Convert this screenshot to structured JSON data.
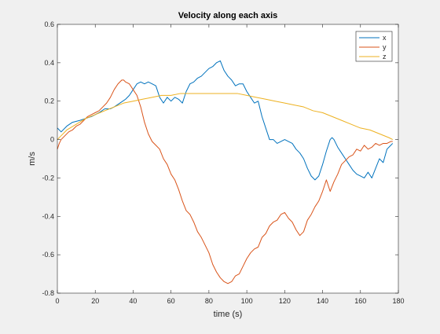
{
  "chart_data": {
    "type": "line",
    "title": "Velocity along each axis",
    "xlabel": "time (s)",
    "ylabel": "m/s",
    "xlim": [
      0,
      180
    ],
    "ylim": [
      -0.8,
      0.6
    ],
    "xticks": [
      0,
      20,
      40,
      60,
      80,
      100,
      120,
      140,
      160,
      180
    ],
    "yticks": [
      -0.8,
      -0.6,
      -0.4,
      -0.2,
      0,
      0.2,
      0.4,
      0.6
    ],
    "xtick_labels": [
      "0",
      "20",
      "40",
      "60",
      "80",
      "100",
      "120",
      "140",
      "160",
      "180"
    ],
    "ytick_labels": [
      "-0.8",
      "-0.6",
      "-0.4",
      "-0.2",
      "0",
      "0.2",
      "0.4",
      "0.6"
    ],
    "grid": false,
    "legend_position": "top-right",
    "series": [
      {
        "name": "x",
        "color": "#0072BD",
        "x": [
          0,
          2,
          5,
          8,
          12,
          15,
          18,
          22,
          25,
          28,
          30,
          33,
          36,
          38,
          40,
          42,
          44,
          46,
          48,
          50,
          52,
          54,
          56,
          58,
          60,
          62,
          64,
          66,
          68,
          70,
          72,
          74,
          76,
          78,
          80,
          82,
          84,
          86,
          88,
          90,
          92,
          94,
          96,
          98,
          100,
          102,
          104,
          106,
          108,
          110,
          112,
          114,
          116,
          118,
          120,
          122,
          124,
          126,
          128,
          130,
          132,
          134,
          136,
          138,
          140,
          142,
          144,
          145,
          146,
          148,
          150,
          152,
          154,
          156,
          158,
          160,
          162,
          164,
          166,
          168,
          170,
          172,
          174,
          176,
          177
        ],
        "y": [
          0.06,
          0.04,
          0.07,
          0.09,
          0.1,
          0.11,
          0.12,
          0.14,
          0.16,
          0.16,
          0.17,
          0.19,
          0.21,
          0.23,
          0.26,
          0.29,
          0.3,
          0.29,
          0.3,
          0.29,
          0.28,
          0.22,
          0.19,
          0.22,
          0.2,
          0.22,
          0.21,
          0.19,
          0.25,
          0.29,
          0.3,
          0.32,
          0.33,
          0.35,
          0.37,
          0.38,
          0.4,
          0.41,
          0.36,
          0.33,
          0.31,
          0.28,
          0.29,
          0.29,
          0.25,
          0.22,
          0.19,
          0.2,
          0.12,
          0.06,
          0.0,
          0.0,
          -0.02,
          -0.01,
          0.0,
          -0.01,
          -0.02,
          -0.05,
          -0.07,
          -0.1,
          -0.15,
          -0.19,
          -0.21,
          -0.19,
          -0.13,
          -0.06,
          0.0,
          0.01,
          0.0,
          -0.04,
          -0.07,
          -0.1,
          -0.13,
          -0.16,
          -0.18,
          -0.19,
          -0.2,
          -0.17,
          -0.2,
          -0.15,
          -0.1,
          -0.12,
          -0.05,
          -0.03,
          -0.02
        ]
      },
      {
        "name": "y",
        "color": "#D95319",
        "x": [
          0,
          1,
          2,
          4,
          6,
          8,
          10,
          12,
          14,
          16,
          18,
          20,
          22,
          24,
          26,
          28,
          30,
          32,
          34,
          35,
          36,
          38,
          40,
          42,
          44,
          46,
          48,
          50,
          52,
          54,
          56,
          58,
          60,
          62,
          64,
          66,
          68,
          70,
          72,
          74,
          76,
          78,
          80,
          82,
          84,
          86,
          88,
          90,
          92,
          94,
          96,
          98,
          100,
          102,
          104,
          106,
          108,
          110,
          112,
          114,
          116,
          118,
          120,
          122,
          124,
          126,
          128,
          130,
          132,
          134,
          136,
          138,
          140,
          142,
          144,
          146,
          148,
          150,
          152,
          154,
          156,
          158,
          160,
          162,
          164,
          166,
          168,
          170,
          172,
          174,
          176,
          177
        ],
        "y": [
          -0.05,
          -0.02,
          0.0,
          0.02,
          0.04,
          0.05,
          0.07,
          0.08,
          0.1,
          0.12,
          0.13,
          0.14,
          0.15,
          0.17,
          0.19,
          0.22,
          0.26,
          0.29,
          0.31,
          0.31,
          0.3,
          0.29,
          0.26,
          0.23,
          0.17,
          0.09,
          0.03,
          -0.01,
          -0.03,
          -0.05,
          -0.1,
          -0.13,
          -0.18,
          -0.21,
          -0.26,
          -0.32,
          -0.37,
          -0.39,
          -0.43,
          -0.48,
          -0.51,
          -0.55,
          -0.59,
          -0.65,
          -0.69,
          -0.72,
          -0.74,
          -0.75,
          -0.74,
          -0.71,
          -0.7,
          -0.66,
          -0.62,
          -0.59,
          -0.57,
          -0.56,
          -0.51,
          -0.49,
          -0.45,
          -0.43,
          -0.42,
          -0.39,
          -0.38,
          -0.41,
          -0.43,
          -0.47,
          -0.5,
          -0.48,
          -0.42,
          -0.39,
          -0.35,
          -0.32,
          -0.27,
          -0.21,
          -0.27,
          -0.22,
          -0.18,
          -0.13,
          -0.11,
          -0.09,
          -0.08,
          -0.05,
          -0.06,
          -0.03,
          -0.05,
          -0.04,
          -0.02,
          -0.03,
          -0.02,
          -0.02,
          -0.01,
          -0.01
        ]
      },
      {
        "name": "z",
        "color": "#EDB120",
        "x": [
          0,
          2,
          5,
          10,
          15,
          20,
          25,
          30,
          35,
          40,
          45,
          50,
          55,
          60,
          65,
          70,
          75,
          80,
          85,
          90,
          95,
          100,
          105,
          110,
          115,
          120,
          125,
          130,
          135,
          140,
          145,
          150,
          155,
          160,
          165,
          170,
          175,
          177
        ],
        "y": [
          0.0,
          0.02,
          0.05,
          0.08,
          0.11,
          0.13,
          0.15,
          0.17,
          0.19,
          0.2,
          0.21,
          0.22,
          0.23,
          0.23,
          0.24,
          0.24,
          0.24,
          0.24,
          0.24,
          0.24,
          0.24,
          0.23,
          0.22,
          0.21,
          0.2,
          0.19,
          0.18,
          0.17,
          0.15,
          0.14,
          0.12,
          0.1,
          0.08,
          0.06,
          0.05,
          0.03,
          0.01,
          0.0
        ]
      }
    ]
  }
}
